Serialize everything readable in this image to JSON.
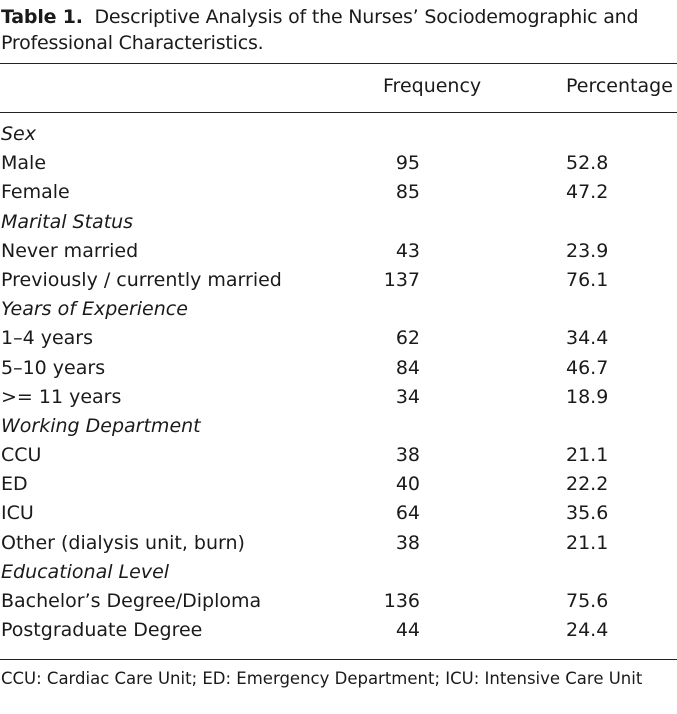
{
  "caption": {
    "label": "Table 1.",
    "text": "Descriptive Analysis of the Nurses’ Sociodemographic and Professional Characteristics."
  },
  "header": {
    "col1": "",
    "col2": "Frequency",
    "col3": "Percentage"
  },
  "rows": [
    {
      "type": "section",
      "label": "Sex",
      "freq": "",
      "pct": ""
    },
    {
      "type": "data",
      "label": "Male",
      "freq": "95",
      "pct": "52.8"
    },
    {
      "type": "data",
      "label": "Female",
      "freq": "85",
      "pct": "47.2"
    },
    {
      "type": "section",
      "label": "Marital Status",
      "freq": "",
      "pct": ""
    },
    {
      "type": "data",
      "label": "Never married",
      "freq": "43",
      "pct": "23.9"
    },
    {
      "type": "data",
      "label": "Previously / currently married",
      "freq": "137",
      "pct": "76.1"
    },
    {
      "type": "section",
      "label": "Years of Experience",
      "freq": "",
      "pct": ""
    },
    {
      "type": "data",
      "label": "1–4 years",
      "freq": "62",
      "pct": "34.4"
    },
    {
      "type": "data",
      "label": "5–10 years",
      "freq": "84",
      "pct": "46.7"
    },
    {
      "type": "data",
      "label": ">= 11 years",
      "freq": "34",
      "pct": "18.9"
    },
    {
      "type": "section",
      "label": "Working Department",
      "freq": "",
      "pct": ""
    },
    {
      "type": "data",
      "label": "CCU",
      "freq": "38",
      "pct": "21.1"
    },
    {
      "type": "data",
      "label": "ED",
      "freq": "40",
      "pct": "22.2"
    },
    {
      "type": "data",
      "label": "ICU",
      "freq": "64",
      "pct": "35.6"
    },
    {
      "type": "data",
      "label": "Other (dialysis unit, burn)",
      "freq": "38",
      "pct": "21.1"
    },
    {
      "type": "section",
      "label": "Educational Level",
      "freq": "",
      "pct": ""
    },
    {
      "type": "data",
      "label": "Bachelor’s Degree/Diploma",
      "freq": "136",
      "pct": "75.6"
    },
    {
      "type": "data",
      "label": "Postgraduate Degree",
      "freq": "44",
      "pct": "24.4"
    }
  ],
  "footnote": "CCU: Cardiac Care Unit; ED: Emergency Department; ICU: Intensive Care Unit"
}
